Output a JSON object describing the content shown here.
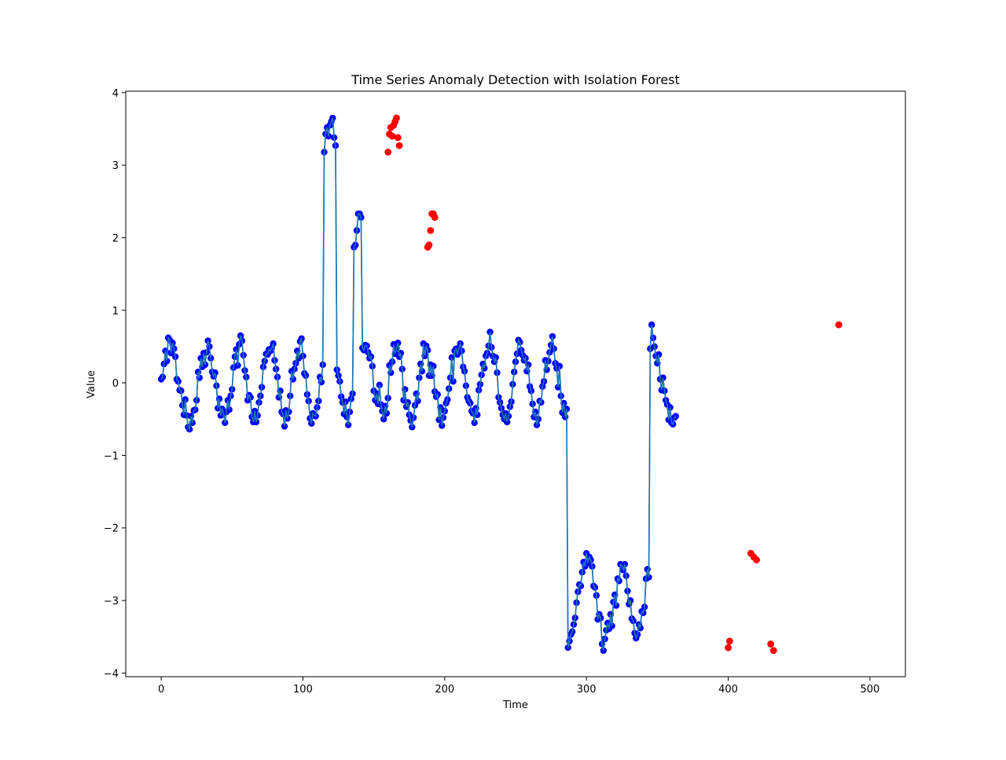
{
  "chart_data": {
    "type": "line",
    "title": "Time Series Anomaly Detection with Isolation Forest",
    "xlabel": "Time",
    "ylabel": "Value",
    "xlim": [
      -25,
      525
    ],
    "ylim": [
      -4.05,
      4.02
    ],
    "xticks": [
      0,
      100,
      200,
      300,
      400,
      500
    ],
    "yticks": [
      -4,
      -3,
      -2,
      -1,
      0,
      1,
      2,
      3,
      4
    ],
    "xtick_labels": [
      "0",
      "100",
      "200",
      "300",
      "400",
      "500"
    ],
    "ytick_labels": [
      "−4",
      "−3",
      "−2",
      "−1",
      "0",
      "1",
      "2",
      "3",
      "4"
    ],
    "grid": false,
    "colors": {
      "line": "#1f77b4",
      "normal": "#0000ff",
      "anomaly": "#ff0000"
    },
    "series": [
      {
        "kind": "line+markers",
        "x_start": 0,
        "x_step": 1,
        "values": [
          0.05,
          0.08,
          0.26,
          0.44,
          0.3,
          0.62,
          0.59,
          0.41,
          0.55,
          0.47,
          0.36,
          0.05,
          0.02,
          -0.1,
          -0.11,
          -0.31,
          -0.44,
          -0.23,
          -0.45,
          -0.61,
          -0.64,
          -0.46,
          -0.55,
          -0.38,
          -0.37,
          -0.24,
          0.15,
          0.07,
          0.34,
          0.22,
          0.41,
          0.25,
          0.42,
          0.58,
          0.5,
          0.34,
          0.15,
          0.09,
          0.14,
          -0.04,
          -0.35,
          -0.22,
          -0.45,
          -0.36,
          -0.42,
          -0.55,
          -0.4,
          -0.24,
          -0.37,
          -0.18,
          -0.09,
          0.21,
          0.36,
          0.46,
          0.24,
          0.53,
          0.65,
          0.58,
          0.38,
          0.17,
          0.08,
          -0.24,
          -0.17,
          -0.2,
          -0.47,
          -0.54,
          -0.39,
          -0.54,
          -0.45,
          -0.27,
          -0.18,
          -0.06,
          0.22,
          0.3,
          0.4,
          0.39,
          0.46,
          0.44,
          0.48,
          0.54,
          0.31,
          0.19,
          0.08,
          -0.2,
          -0.11,
          -0.4,
          -0.43,
          -0.6,
          -0.38,
          -0.49,
          -0.4,
          -0.18,
          0.16,
          0.05,
          0.19,
          0.27,
          0.44,
          0.34,
          0.57,
          0.61,
          0.37,
          0.13,
          0.1,
          -0.16,
          -0.25,
          -0.49,
          -0.56,
          -0.42,
          -0.45,
          -0.46,
          -0.34,
          -0.25,
          0.08,
          0.01,
          0.25,
          3.18,
          3.43,
          3.52,
          3.4,
          3.55,
          3.6,
          3.65,
          3.38,
          3.27,
          0.18,
          0.1,
          0.02,
          -0.19,
          -0.27,
          -0.43,
          -0.26,
          -0.47,
          -0.58,
          -0.4,
          -0.22,
          -0.15,
          1.87,
          1.9,
          2.1,
          2.33,
          2.33,
          2.28,
          0.48,
          0.45,
          0.52,
          0.51,
          0.42,
          0.34,
          0.36,
          0.23,
          -0.11,
          -0.24,
          -0.15,
          -0.29,
          -0.03,
          -0.3,
          -0.39,
          -0.5,
          -0.32,
          -0.42,
          -0.21,
          0.24,
          0.14,
          0.29,
          0.53,
          0.4,
          0.48,
          0.55,
          0.36,
          0.41,
          0.19,
          -0.24,
          -0.09,
          -0.33,
          -0.27,
          -0.44,
          -0.52,
          -0.61,
          -0.48,
          -0.31,
          -0.15,
          -0.25,
          0.07,
          0.26,
          0.16,
          0.54,
          0.37,
          0.51,
          0.45,
          0.1,
          0.25,
          0.1,
          0.23,
          -0.12,
          -0.19,
          -0.16,
          -0.51,
          -0.34,
          -0.59,
          -0.48,
          -0.39,
          -0.28,
          -0.23,
          -0.08,
          0.07,
          0.35,
          0.02,
          0.44,
          0.47,
          0.39,
          0.48,
          0.54,
          0.44,
          0.22,
          0.16,
          -0.04,
          -0.2,
          -0.25,
          -0.28,
          -0.39,
          -0.42,
          -0.55,
          -0.35,
          -0.44,
          -0.1,
          -0.02,
          0.11,
          0.26,
          0.2,
          0.37,
          0.41,
          0.51,
          0.7,
          0.49,
          0.37,
          0.29,
          0.35,
          0.14,
          -0.2,
          -0.27,
          -0.35,
          -0.44,
          -0.5,
          -0.42,
          -0.54,
          -0.46,
          -0.33,
          -0.26,
          -0.02,
          0.15,
          0.29,
          0.4,
          0.59,
          0.56,
          0.45,
          0.38,
          0.31,
          0.34,
          0.16,
          0.25,
          -0.05,
          -0.11,
          -0.29,
          -0.47,
          -0.4,
          -0.58,
          -0.5,
          -0.25,
          -0.27,
          -0.05,
          0.02,
          0.31,
          0.18,
          0.3,
          0.42,
          0.52,
          0.64,
          0.47,
          0.27,
          0.2,
          -0.06,
          0.23,
          -0.18,
          -0.41,
          -0.28,
          -0.47,
          -0.36,
          -3.65,
          -3.56,
          -3.47,
          -3.43,
          -3.33,
          -3.24,
          -3.03,
          -2.88,
          -2.78,
          -2.8,
          -2.61,
          -2.47,
          -2.53,
          -2.35,
          -2.48,
          -2.4,
          -2.44,
          -2.53,
          -2.8,
          -2.82,
          -2.93,
          -3.26,
          -3.19,
          -3.24,
          -3.6,
          -3.69,
          -3.53,
          -3.41,
          -3.31,
          -3.39,
          -3.19,
          -3.35,
          -3.02,
          -2.92,
          -3.07,
          -2.7,
          -2.73,
          -2.5,
          -2.52,
          -2.58,
          -2.5,
          -2.66,
          -2.87,
          -3.05,
          -3.0,
          -3.25,
          -3.28,
          -3.45,
          -3.52,
          -3.47,
          -3.33,
          -3.38,
          -3.15,
          -3.17,
          -3.09,
          -2.7,
          -2.57,
          -2.68,
          0.47,
          0.8,
          0.62,
          0.5,
          0.37,
          0.27,
          0.39,
          0.05,
          -0.1,
          0.07,
          -0.11,
          -0.24,
          -0.3,
          -0.51,
          -0.34,
          -0.55,
          -0.57,
          -0.48,
          -0.46
        ]
      },
      {
        "kind": "anomaly-markers",
        "name": "",
        "x": [
          160,
          161,
          162,
          163,
          164,
          165,
          166,
          167,
          168,
          188,
          189,
          190,
          191,
          192,
          193,
          400,
          401,
          416,
          418,
          420,
          430,
          432,
          478
        ],
        "values": [
          3.18,
          3.43,
          3.52,
          3.4,
          3.55,
          3.6,
          3.65,
          3.38,
          3.27,
          1.87,
          1.9,
          2.1,
          2.33,
          2.33,
          2.28,
          -3.65,
          -3.56,
          -2.35,
          -2.4,
          -2.44,
          -3.6,
          -3.69,
          0.8
        ]
      }
    ]
  }
}
